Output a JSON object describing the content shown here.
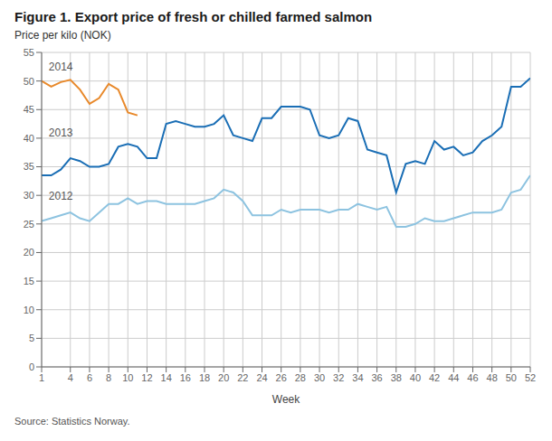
{
  "chart_data": {
    "type": "line",
    "title": "Figure 1. Export price of fresh or chilled farmed salmon",
    "ylabel": "Price per kilo (NOK)",
    "xlabel": "Week",
    "source": "Source: Statistics Norway.",
    "xlim": [
      1,
      52
    ],
    "xticks": [
      1,
      4,
      6,
      8,
      10,
      12,
      14,
      16,
      18,
      20,
      22,
      24,
      26,
      28,
      30,
      32,
      34,
      36,
      38,
      40,
      42,
      44,
      46,
      48,
      50,
      52
    ],
    "ylim": [
      0,
      55
    ],
    "yticks": [
      0,
      5,
      10,
      15,
      20,
      25,
      30,
      35,
      40,
      45,
      50,
      55
    ],
    "grid": true,
    "series": [
      {
        "color": "#e8892b",
        "x": [
          1,
          2,
          3,
          4,
          5,
          6,
          7,
          8,
          9,
          10,
          11
        ],
        "values": [
          50.0,
          49.0,
          49.8,
          50.2,
          48.5,
          46.0,
          47.0,
          49.5,
          48.5,
          44.5,
          44.0
        ]
      },
      {
        "color": "#1a6eb5",
        "x": [
          1,
          2,
          3,
          4,
          5,
          6,
          7,
          8,
          9,
          10,
          11,
          12,
          13,
          14,
          15,
          16,
          17,
          18,
          19,
          20,
          21,
          22,
          23,
          24,
          25,
          26,
          27,
          28,
          29,
          30,
          31,
          32,
          33,
          34,
          35,
          36,
          37,
          38,
          39,
          40,
          41,
          42,
          43,
          44,
          45,
          46,
          47,
          48,
          49,
          50,
          51,
          52
        ],
        "values": [
          33.5,
          33.5,
          34.5,
          36.5,
          36.0,
          35.0,
          35.0,
          35.5,
          38.5,
          39.0,
          38.5,
          36.5,
          36.5,
          42.5,
          43.0,
          42.5,
          42.0,
          42.0,
          42.5,
          44.0,
          40.5,
          40.0,
          39.5,
          43.5,
          43.5,
          45.5,
          45.5,
          45.5,
          45.0,
          40.5,
          40.0,
          40.5,
          43.5,
          43.0,
          38.0,
          37.5,
          37.0,
          30.5,
          35.5,
          36.0,
          35.5,
          39.5,
          38.0,
          38.5,
          37.0,
          37.5,
          39.5,
          40.5,
          42.0,
          49.0,
          49.0,
          50.5
        ]
      },
      {
        "color": "#8dc3e0",
        "x": [
          1,
          2,
          3,
          4,
          5,
          6,
          7,
          8,
          9,
          10,
          11,
          12,
          13,
          14,
          15,
          16,
          17,
          18,
          19,
          20,
          21,
          22,
          23,
          24,
          25,
          26,
          27,
          28,
          29,
          30,
          31,
          32,
          33,
          34,
          35,
          36,
          37,
          38,
          39,
          40,
          41,
          42,
          43,
          44,
          45,
          46,
          47,
          48,
          49,
          50,
          51,
          52
        ],
        "values": [
          25.5,
          26.0,
          26.5,
          27.0,
          26.0,
          25.5,
          27.0,
          28.5,
          28.5,
          29.5,
          28.5,
          29.0,
          29.0,
          28.5,
          28.5,
          28.5,
          28.5,
          29.0,
          29.5,
          31.0,
          30.5,
          29.0,
          26.5,
          26.5,
          26.5,
          27.5,
          27.0,
          27.5,
          27.5,
          27.5,
          27.0,
          27.5,
          27.5,
          28.5,
          28.0,
          27.5,
          28.0,
          24.5,
          24.5,
          25.0,
          26.0,
          25.5,
          25.5,
          26.0,
          26.5,
          27.0,
          27.0,
          27.0,
          27.5,
          30.5,
          31.0,
          33.5
        ]
      }
    ],
    "annotations": [
      {
        "text": "2014",
        "x": 3.0,
        "y": 51.0
      },
      {
        "text": "2013",
        "x": 3.0,
        "y": 39.5
      },
      {
        "text": "2012",
        "x": 3.0,
        "y": 28.5
      }
    ]
  }
}
